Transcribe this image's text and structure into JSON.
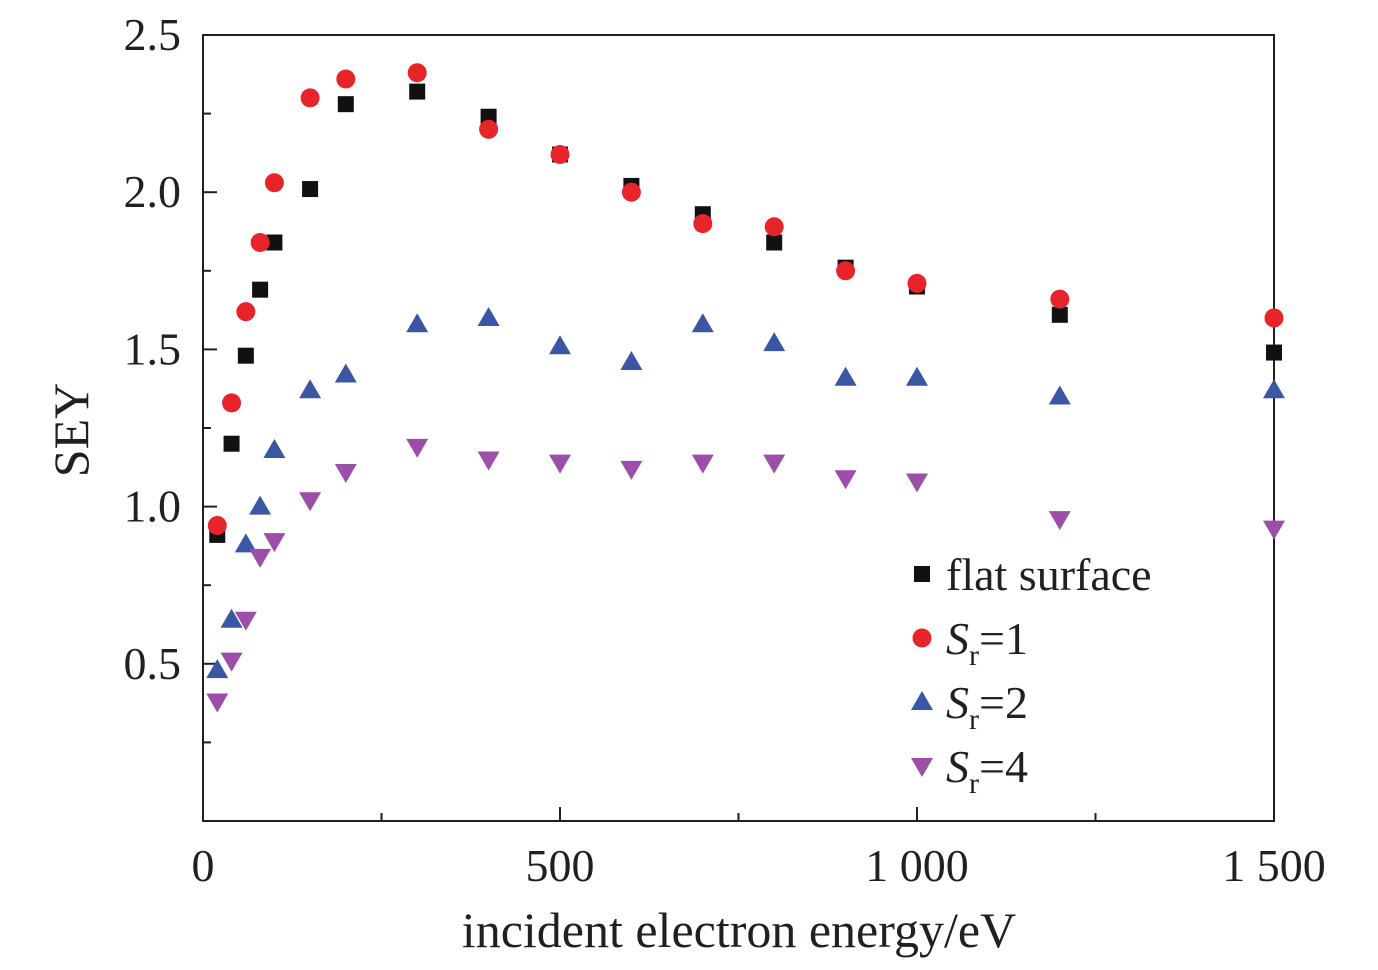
{
  "chart_data": {
    "type": "scatter",
    "xlabel": "incident electron energy/eV",
    "ylabel": "SEY",
    "xlim": [
      0,
      1500
    ],
    "ylim": [
      0,
      2.5
    ],
    "xticks": [
      0,
      500,
      1000,
      1500
    ],
    "xtick_labels": [
      "0",
      "500",
      "1 000",
      "1 500"
    ],
    "yticks": [
      0.5,
      1.0,
      1.5,
      2.0,
      2.5
    ],
    "ytick_labels": [
      "0.5",
      "1.0",
      "1.5",
      "2.0",
      "2.5"
    ],
    "legend_position": "bottom-right",
    "series": [
      {
        "name": "flat surface",
        "legend_main": "flat surface",
        "legend_sub": "",
        "legend_suffix": "",
        "marker": "square",
        "color": "#111111",
        "x": [
          20,
          40,
          60,
          80,
          100,
          150,
          200,
          300,
          400,
          500,
          600,
          700,
          800,
          900,
          1000,
          1200,
          1500
        ],
        "y": [
          0.91,
          1.2,
          1.48,
          1.69,
          1.84,
          2.01,
          2.28,
          2.32,
          2.24,
          2.12,
          2.02,
          1.93,
          1.84,
          1.76,
          1.7,
          1.61,
          1.49
        ]
      },
      {
        "name": "Sr=1",
        "legend_main": "S",
        "legend_sub": "r",
        "legend_suffix": "=1",
        "marker": "circle",
        "color": "#e8242b",
        "x": [
          20,
          40,
          60,
          80,
          100,
          150,
          200,
          300,
          400,
          500,
          600,
          700,
          800,
          900,
          1000,
          1200,
          1500
        ],
        "y": [
          0.94,
          1.33,
          1.62,
          1.84,
          2.03,
          2.3,
          2.36,
          2.38,
          2.2,
          2.12,
          2.0,
          1.9,
          1.89,
          1.75,
          1.71,
          1.66,
          1.6
        ]
      },
      {
        "name": "Sr=2",
        "legend_main": "S",
        "legend_sub": "r",
        "legend_suffix": "=2",
        "marker": "triangle-up",
        "color": "#3b56a5",
        "x": [
          20,
          40,
          60,
          80,
          100,
          150,
          200,
          300,
          400,
          500,
          600,
          700,
          800,
          900,
          1000,
          1200,
          1500
        ],
        "y": [
          0.48,
          0.64,
          0.88,
          1.0,
          1.18,
          1.37,
          1.42,
          1.58,
          1.6,
          1.51,
          1.46,
          1.58,
          1.52,
          1.41,
          1.41,
          1.35,
          1.37
        ]
      },
      {
        "name": "Sr=4",
        "legend_main": "S",
        "legend_sub": "r",
        "legend_suffix": "=4",
        "marker": "triangle-down",
        "color": "#9b4fa8",
        "x": [
          20,
          40,
          60,
          80,
          100,
          150,
          200,
          300,
          400,
          500,
          600,
          700,
          800,
          900,
          1000,
          1200,
          1500
        ],
        "y": [
          0.38,
          0.51,
          0.64,
          0.84,
          0.89,
          1.02,
          1.11,
          1.19,
          1.15,
          1.14,
          1.12,
          1.14,
          1.14,
          1.09,
          1.08,
          0.96,
          0.93
        ]
      }
    ]
  }
}
